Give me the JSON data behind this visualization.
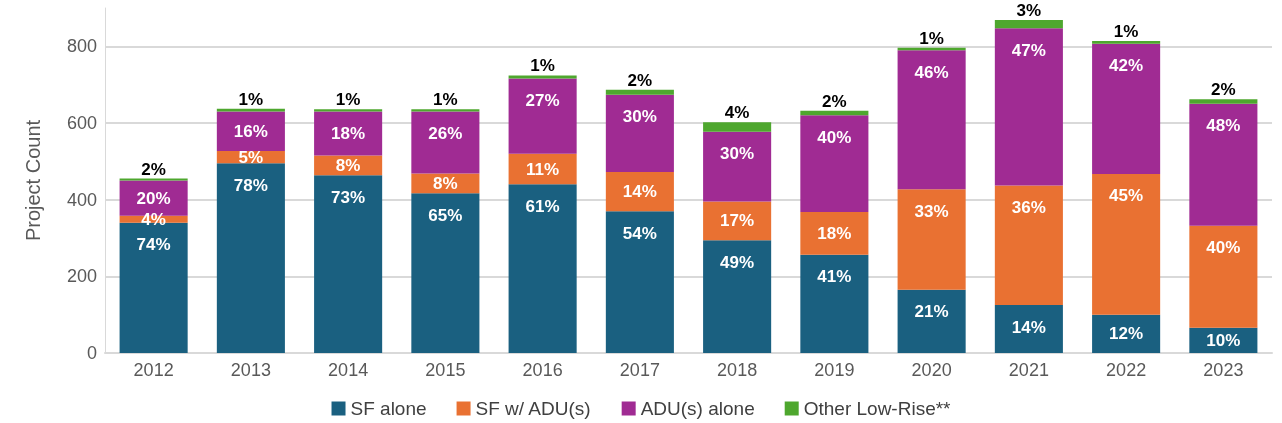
{
  "chart_data": {
    "type": "bar",
    "stacked": true,
    "ylabel": "Project Count",
    "categories": [
      "2012",
      "2013",
      "2014",
      "2015",
      "2016",
      "2017",
      "2018",
      "2019",
      "2020",
      "2021",
      "2022",
      "2023"
    ],
    "series": [
      {
        "name": "SF alone",
        "color": "#1a6080",
        "values": [
          340,
          495,
          464,
          417,
          440,
          370,
          294,
          256,
          165,
          125,
          100,
          66
        ]
      },
      {
        "name": "SF w/ ADU(s)",
        "color": "#e97132",
        "values": [
          18,
          32,
          51,
          51,
          80,
          102,
          101,
          112,
          262,
          312,
          367,
          266
        ]
      },
      {
        "name": "ADU(s) alone",
        "color": "#a02b93",
        "values": [
          92,
          103,
          115,
          162,
          196,
          202,
          182,
          252,
          363,
          410,
          340,
          318
        ]
      },
      {
        "name": "Other Low-Rise**",
        "color": "#4ea72e",
        "values": [
          5,
          7,
          6,
          6,
          8,
          13,
          25,
          12,
          6,
          22,
          7,
          12
        ]
      }
    ],
    "annotations": [
      {
        "text": "74%",
        "x": "2012",
        "y": 340
      },
      {
        "text": "4%",
        "x": "2012",
        "y": 358
      },
      {
        "text": "20%",
        "x": "2012",
        "y": 450
      },
      {
        "text": "2%",
        "x": "2012",
        "y": 455
      },
      {
        "text": "78%",
        "x": "2013",
        "y": 495
      },
      {
        "text": "5%",
        "x": "2013",
        "y": 527
      },
      {
        "text": "16%",
        "x": "2013",
        "y": 630
      },
      {
        "text": "1%",
        "x": "2013",
        "y": 637
      },
      {
        "text": "73%",
        "x": "2014",
        "y": 464
      },
      {
        "text": "8%",
        "x": "2014",
        "y": 515
      },
      {
        "text": "18%",
        "x": "2014",
        "y": 630
      },
      {
        "text": "1%",
        "x": "2014",
        "y": 636
      },
      {
        "text": "65%",
        "x": "2015",
        "y": 417
      },
      {
        "text": "8%",
        "x": "2015",
        "y": 468
      },
      {
        "text": "26%",
        "x": "2015",
        "y": 630
      },
      {
        "text": "1%",
        "x": "2015",
        "y": 636
      },
      {
        "text": "61%",
        "x": "2016",
        "y": 440
      },
      {
        "text": "11%",
        "x": "2016",
        "y": 520
      },
      {
        "text": "27%",
        "x": "2016",
        "y": 716
      },
      {
        "text": "1%",
        "x": "2016",
        "y": 724
      },
      {
        "text": "54%",
        "x": "2017",
        "y": 370
      },
      {
        "text": "14%",
        "x": "2017",
        "y": 472
      },
      {
        "text": "30%",
        "x": "2017",
        "y": 674
      },
      {
        "text": "2%",
        "x": "2017",
        "y": 687
      },
      {
        "text": "49%",
        "x": "2018",
        "y": 294
      },
      {
        "text": "17%",
        "x": "2018",
        "y": 395
      },
      {
        "text": "30%",
        "x": "2018",
        "y": 577
      },
      {
        "text": "4%",
        "x": "2018",
        "y": 602
      },
      {
        "text": "41%",
        "x": "2019",
        "y": 256
      },
      {
        "text": "18%",
        "x": "2019",
        "y": 368
      },
      {
        "text": "40%",
        "x": "2019",
        "y": 620
      },
      {
        "text": "2%",
        "x": "2019",
        "y": 632
      },
      {
        "text": "21%",
        "x": "2020",
        "y": 165
      },
      {
        "text": "33%",
        "x": "2020",
        "y": 427
      },
      {
        "text": "46%",
        "x": "2020",
        "y": 790
      },
      {
        "text": "1%",
        "x": "2020",
        "y": 796
      },
      {
        "text": "14%",
        "x": "2021",
        "y": 125
      },
      {
        "text": "36%",
        "x": "2021",
        "y": 437
      },
      {
        "text": "47%",
        "x": "2021",
        "y": 847
      },
      {
        "text": "3%",
        "x": "2021",
        "y": 869
      },
      {
        "text": "12%",
        "x": "2022",
        "y": 100
      },
      {
        "text": "45%",
        "x": "2022",
        "y": 467
      },
      {
        "text": "42%",
        "x": "2022",
        "y": 807
      },
      {
        "text": "1%",
        "x": "2022",
        "y": 814
      },
      {
        "text": "10%",
        "x": "2023",
        "y": 66
      },
      {
        "text": "40%",
        "x": "2023",
        "y": 332
      },
      {
        "text": "48%",
        "x": "2023",
        "y": 650
      },
      {
        "text": "2%",
        "x": "2023",
        "y": 662
      }
    ],
    "ylim": [
      0,
      900
    ],
    "yticks": [
      0,
      200,
      400,
      600,
      800
    ],
    "grid": "y",
    "legend": "bottom"
  }
}
